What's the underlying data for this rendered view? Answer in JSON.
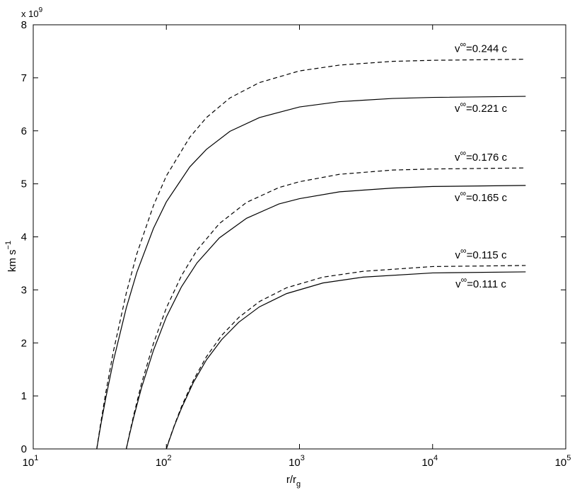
{
  "chart_data": {
    "type": "line",
    "x_scale": "log",
    "xlim": [
      10,
      100000
    ],
    "ylim": [
      0,
      8
    ],
    "xticks": [
      {
        "value": 10,
        "label": "10",
        "exp": "1"
      },
      {
        "value": 100,
        "label": "10",
        "exp": "2"
      },
      {
        "value": 1000,
        "label": "10",
        "exp": "3"
      },
      {
        "value": 10000,
        "label": "10",
        "exp": "4"
      },
      {
        "value": 100000,
        "label": "10",
        "exp": "5"
      }
    ],
    "yticks": [
      0,
      1,
      2,
      3,
      4,
      5,
      6,
      7,
      8
    ],
    "y_multiplier": {
      "text": "x 10",
      "exp": "9"
    },
    "xlabel": {
      "text": "r/r",
      "sub": "g"
    },
    "ylabel": {
      "text": "km s",
      "exp": "−1"
    },
    "series": [
      {
        "style": "dashed",
        "color": "#000000",
        "label": {
          "base": "v",
          "sup": "∞",
          "text": "=0.244 c"
        },
        "x": [
          30,
          32,
          35,
          40,
          50,
          60,
          80,
          100,
          150,
          200,
          300,
          500,
          1000,
          2000,
          5000,
          10000,
          50000
        ],
        "values": [
          0,
          0.46,
          1.05,
          1.84,
          2.94,
          3.68,
          4.59,
          5.15,
          5.88,
          6.25,
          6.62,
          6.91,
          7.13,
          7.24,
          7.31,
          7.33,
          7.35
        ]
      },
      {
        "style": "solid",
        "color": "#000000",
        "label": {
          "base": "v",
          "sup": "∞",
          "text": "=0.221 c"
        },
        "x": [
          30,
          32,
          35,
          40,
          50,
          60,
          80,
          100,
          150,
          200,
          300,
          500,
          1000,
          2000,
          5000,
          10000,
          50000
        ],
        "values": [
          0,
          0.42,
          0.95,
          1.66,
          2.66,
          3.33,
          4.16,
          4.66,
          5.32,
          5.65,
          5.99,
          6.25,
          6.45,
          6.55,
          6.61,
          6.63,
          6.65
        ]
      },
      {
        "style": "dashed",
        "color": "#000000",
        "label": {
          "base": "v",
          "sup": "∞",
          "text": "=0.176 c"
        },
        "x": [
          50,
          53,
          57,
          65,
          80,
          100,
          130,
          170,
          250,
          400,
          700,
          1000,
          2000,
          5000,
          10000,
          50000
        ],
        "values": [
          0,
          0.3,
          0.65,
          1.23,
          1.99,
          2.66,
          3.27,
          3.75,
          4.25,
          4.65,
          4.93,
          5.04,
          5.18,
          5.26,
          5.28,
          5.3
        ]
      },
      {
        "style": "solid",
        "color": "#000000",
        "label": {
          "base": "v",
          "sup": "∞",
          "text": "=0.165 c"
        },
        "x": [
          50,
          53,
          57,
          65,
          80,
          100,
          130,
          170,
          250,
          400,
          700,
          1000,
          2000,
          5000,
          10000,
          50000
        ],
        "values": [
          0,
          0.28,
          0.61,
          1.15,
          1.86,
          2.49,
          3.06,
          3.51,
          3.98,
          4.35,
          4.62,
          4.72,
          4.85,
          4.92,
          4.95,
          4.97
        ]
      },
      {
        "style": "dashed",
        "color": "#000000",
        "label": {
          "base": "v",
          "sup": "∞",
          "text": "=0.115 c"
        },
        "x": [
          100,
          105,
          115,
          130,
          160,
          200,
          260,
          350,
          500,
          800,
          1500,
          3000,
          10000,
          50000
        ],
        "values": [
          0,
          0.17,
          0.45,
          0.8,
          1.3,
          1.74,
          2.14,
          2.48,
          2.78,
          3.04,
          3.24,
          3.35,
          3.44,
          3.46
        ]
      },
      {
        "style": "solid",
        "color": "#000000",
        "label": {
          "base": "v",
          "sup": "∞",
          "text": "=0.111 c"
        },
        "x": [
          100,
          105,
          115,
          130,
          160,
          200,
          260,
          350,
          500,
          800,
          1500,
          3000,
          10000,
          50000
        ],
        "values": [
          0,
          0.16,
          0.44,
          0.77,
          1.26,
          1.68,
          2.06,
          2.39,
          2.68,
          2.93,
          3.13,
          3.24,
          3.32,
          3.34
        ]
      }
    ]
  }
}
